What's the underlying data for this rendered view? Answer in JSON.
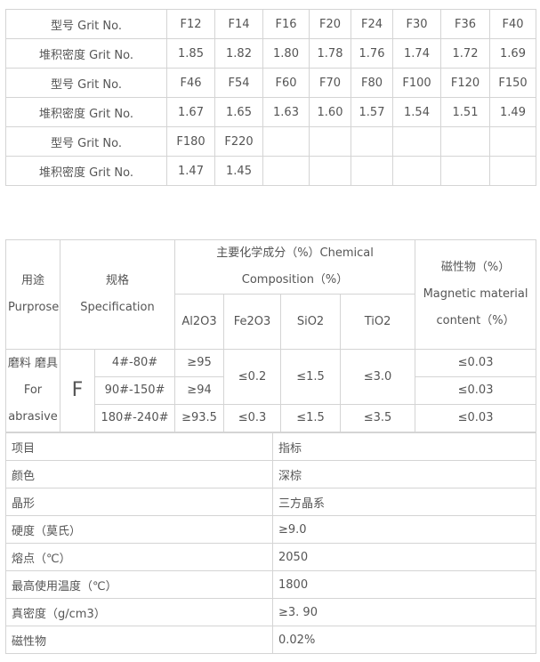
{
  "grit_table": {
    "rows": [
      {
        "label": "型号 Grit No.",
        "cells": [
          "F12",
          "F14",
          "F16",
          "F20",
          "F24",
          "F30",
          "F36",
          "F40"
        ]
      },
      {
        "label": "堆积密度 Grit No.",
        "cells": [
          "1.85",
          "1.82",
          "1.80",
          "1.78",
          "1.76",
          "1.74",
          "1.72",
          "1.69"
        ]
      },
      {
        "label": "型号 Grit No.",
        "cells": [
          "F46",
          "F54",
          "F60",
          "F70",
          "F80",
          "F100",
          "F120",
          "F150"
        ]
      },
      {
        "label": "堆积密度 Grit No.",
        "cells": [
          "1.67",
          "1.65",
          "1.63",
          "1.60",
          "1.57",
          "1.54",
          "1.51",
          "1.49"
        ]
      },
      {
        "label": "型号 Grit No.",
        "cells": [
          "F180",
          "F220",
          "",
          "",
          "",
          "",
          "",
          ""
        ]
      },
      {
        "label": "堆积密度 Grit No.",
        "cells": [
          "1.47",
          "1.45",
          "",
          "",
          "",
          "",
          "",
          ""
        ]
      }
    ]
  },
  "chem_table": {
    "purpose_header": "用途 Purprose",
    "spec_header": "规格 Specification",
    "chem_header": "主要化学成分（%）Chemical Composition（%）",
    "magnetic_header": "磁性物（%） Magnetic material content（%）",
    "components": [
      "Al2O3",
      "Fe2O3",
      "SiO2",
      "TiO2"
    ],
    "purpose": "磨料 磨具 For abrasive",
    "grade": "F",
    "rows": [
      {
        "spec": "4#-80#",
        "al2o3": "≥95",
        "magnetic": "≤0.03"
      },
      {
        "spec": "90#-150#",
        "al2o3": "≥94",
        "magnetic": "≤0.03"
      },
      {
        "spec": "180#-240#",
        "al2o3": "≥93.5",
        "fe2o3": "≤0.3",
        "sio2": "≤1.5",
        "tio2": "≤3.5",
        "magnetic": "≤0.03"
      }
    ],
    "merged": {
      "fe2o3": "≤0.2",
      "sio2": "≤1.5",
      "tio2": "≤3.0"
    }
  },
  "props_table": {
    "rows": [
      [
        "项目",
        "指标"
      ],
      [
        "颜色",
        "深棕"
      ],
      [
        "晶形",
        "三方晶系"
      ],
      [
        "硬度（莫氏）",
        "≥9.0"
      ],
      [
        "熔点（℃）",
        "2050"
      ],
      [
        "最高使用温度（℃）",
        "1800"
      ],
      [
        "真密度（g/cm3）",
        "≥3. 90"
      ],
      [
        "磁性物",
        "0.02%"
      ]
    ]
  }
}
